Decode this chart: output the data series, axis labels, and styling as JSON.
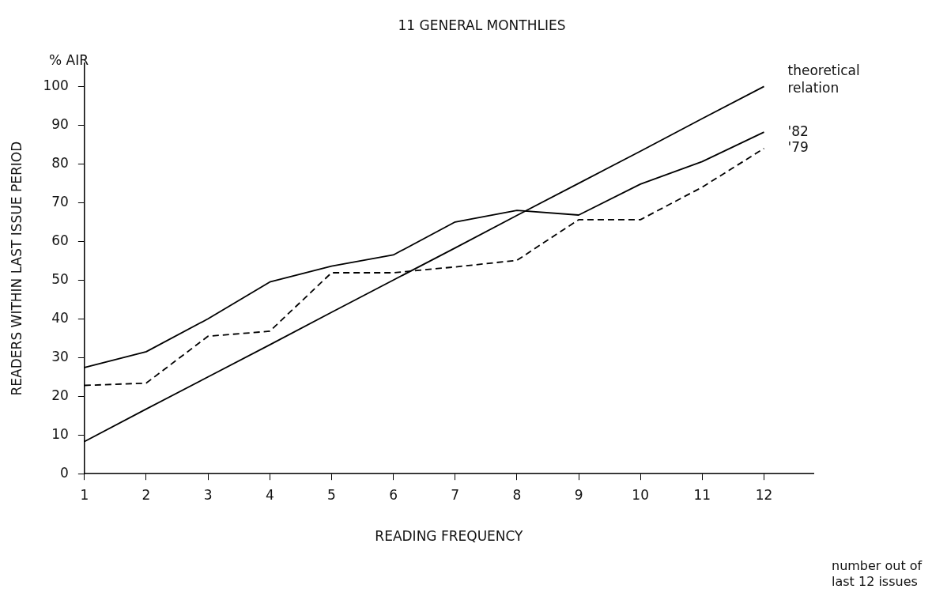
{
  "chart_data": {
    "type": "line",
    "title": "11 GENERAL MONTHLIES",
    "xlabel": "READING FREQUENCY",
    "ylabel": "READERS WITHIN LAST ISSUE PERIOD",
    "annotations": [
      "% AIR",
      "number out of last 12 issues"
    ],
    "x": [
      1,
      2,
      3,
      4,
      5,
      6,
      7,
      8,
      9,
      10,
      11,
      12
    ],
    "xlim": [
      1,
      12.8
    ],
    "xticks": [
      1,
      2,
      3,
      4,
      5,
      6,
      7,
      8,
      9,
      10,
      11,
      12
    ],
    "ylim": [
      0,
      106
    ],
    "yticks": [
      0,
      10,
      20,
      30,
      40,
      50,
      60,
      70,
      80,
      90,
      100
    ],
    "grid": false,
    "legend": false,
    "marker": "none",
    "series": [
      {
        "name": "theoretical relation",
        "color": "#000000",
        "line_style": "solid",
        "values": [
          8.3,
          16.7,
          25,
          33.3,
          41.7,
          50,
          58.3,
          66.7,
          75,
          83.3,
          91.7,
          100
        ]
      },
      {
        "name": "'82",
        "color": "#000000",
        "line_style": "solid",
        "values": [
          27.4,
          31.5,
          40,
          49.5,
          53.6,
          56.5,
          65,
          68,
          66.8,
          74.8,
          80.6,
          88.2
        ]
      },
      {
        "name": "'79",
        "color": "#000000",
        "line_style": "dashed",
        "values": [
          22.8,
          23.4,
          35.5,
          36.8,
          51.9,
          51.9,
          53.4,
          55.1,
          65.6,
          65.6,
          74,
          84
        ]
      }
    ]
  }
}
